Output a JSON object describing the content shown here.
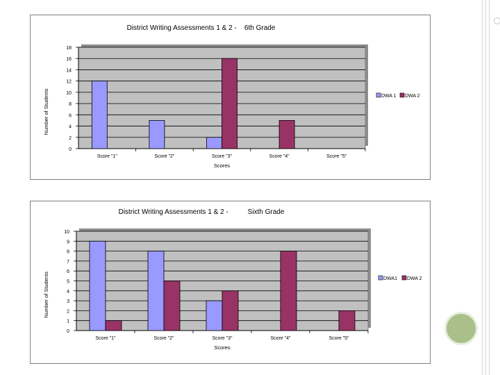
{
  "chart_data": [
    {
      "type": "bar",
      "title": "District Writing Assessments 1 & 2 -    6th Grade",
      "xlabel": "Scores",
      "ylabel": "Number of Students",
      "ylim": [
        0,
        18
      ],
      "yticks": [
        "0",
        "2",
        "4",
        "6",
        "8",
        "10",
        "12",
        "14",
        "16",
        "18"
      ],
      "categories": [
        "Score \"1\"",
        "Score \"2\"",
        "Score \"3\"",
        "Score \"4\"",
        "Score \"5\""
      ],
      "series": [
        {
          "name": "DWA 1",
          "values": [
            12,
            5,
            2,
            0,
            0
          ],
          "color": "#9999ff"
        },
        {
          "name": "DWA 2",
          "values": [
            0,
            0,
            16,
            5,
            0
          ],
          "color": "#993366"
        }
      ],
      "grid": true,
      "legend_position": "right",
      "plot_background": "#c0c0c0"
    },
    {
      "type": "bar",
      "title": "District Writing Assessments 1 & 2 -          Sixth Grade",
      "xlabel": "Scores",
      "ylabel": "Number of Students",
      "ylim": [
        0,
        10
      ],
      "yticks": [
        "0",
        "1",
        "2",
        "3",
        "4",
        "5",
        "6",
        "7",
        "8",
        "9",
        "10"
      ],
      "categories": [
        "Score \"1\"",
        "Score \"2\"",
        "Score \"3\"",
        "Score \"4\"",
        "Score \"5\""
      ],
      "series": [
        {
          "name": "DWA1",
          "values": [
            9,
            8,
            3,
            0,
            0
          ],
          "color": "#9999ff"
        },
        {
          "name": "DWA 2",
          "values": [
            1,
            5,
            4,
            8,
            2
          ],
          "color": "#993366"
        }
      ],
      "grid": true,
      "legend_position": "right",
      "plot_background": "#c0c0c0"
    }
  ]
}
